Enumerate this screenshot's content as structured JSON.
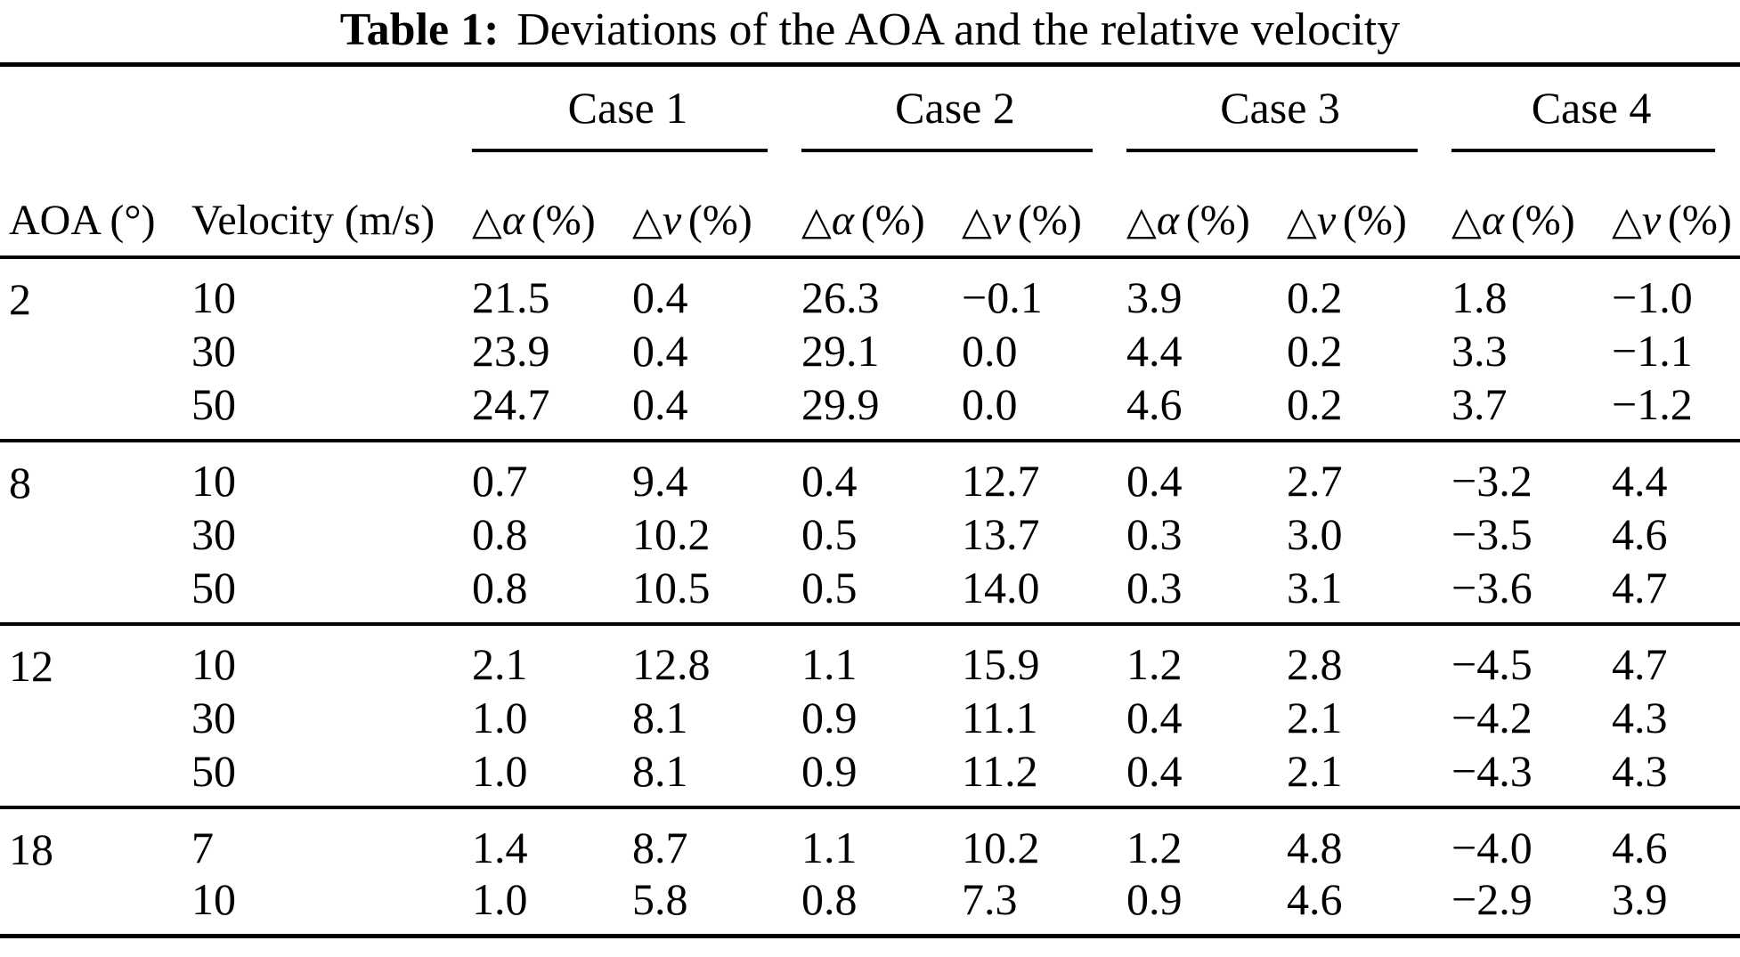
{
  "title": {
    "label": "Table 1:",
    "text": "Deviations of the AOA and the relative velocity"
  },
  "colors": {
    "text": "#000000",
    "background": "#ffffff",
    "rule": "#000000"
  },
  "table": {
    "case_headers": [
      "Case 1",
      "Case 2",
      "Case 3",
      "Case 4"
    ],
    "row_headers": {
      "aoa": "AOA (°)",
      "velocity": "Velocity (m/s)"
    },
    "metric_headers": {
      "triangle": "△",
      "alpha": "α",
      "v": "v",
      "unit": "(%)"
    },
    "groups": [
      {
        "aoa": "2",
        "rows": [
          {
            "velocity": "10",
            "values": [
              "21.5",
              "0.4",
              "26.3",
              "−0.1",
              "3.9",
              "0.2",
              "1.8",
              "−1.0"
            ]
          },
          {
            "velocity": "30",
            "values": [
              "23.9",
              "0.4",
              "29.1",
              "0.0",
              "4.4",
              "0.2",
              "3.3",
              "−1.1"
            ]
          },
          {
            "velocity": "50",
            "values": [
              "24.7",
              "0.4",
              "29.9",
              "0.0",
              "4.6",
              "0.2",
              "3.7",
              "−1.2"
            ]
          }
        ]
      },
      {
        "aoa": "8",
        "rows": [
          {
            "velocity": "10",
            "values": [
              "0.7",
              "9.4",
              "0.4",
              "12.7",
              "0.4",
              "2.7",
              "−3.2",
              "4.4"
            ]
          },
          {
            "velocity": "30",
            "values": [
              "0.8",
              "10.2",
              "0.5",
              "13.7",
              "0.3",
              "3.0",
              "−3.5",
              "4.6"
            ]
          },
          {
            "velocity": "50",
            "values": [
              "0.8",
              "10.5",
              "0.5",
              "14.0",
              "0.3",
              "3.1",
              "−3.6",
              "4.7"
            ]
          }
        ]
      },
      {
        "aoa": "12",
        "rows": [
          {
            "velocity": "10",
            "values": [
              "2.1",
              "12.8",
              "1.1",
              "15.9",
              "1.2",
              "2.8",
              "−4.5",
              "4.7"
            ]
          },
          {
            "velocity": "30",
            "values": [
              "1.0",
              "8.1",
              "0.9",
              "11.1",
              "0.4",
              "2.1",
              "−4.2",
              "4.3"
            ]
          },
          {
            "velocity": "50",
            "values": [
              "1.0",
              "8.1",
              "0.9",
              "11.2",
              "0.4",
              "2.1",
              "−4.3",
              "4.3"
            ]
          }
        ]
      },
      {
        "aoa": "18",
        "rows": [
          {
            "velocity": "7",
            "values": [
              "1.4",
              "8.7",
              "1.1",
              "10.2",
              "1.2",
              "4.8",
              "−4.0",
              "4.6"
            ]
          },
          {
            "velocity": "10",
            "values": [
              "1.0",
              "5.8",
              "0.8",
              "7.3",
              "0.9",
              "4.6",
              "−2.9",
              "3.9"
            ]
          }
        ]
      }
    ]
  }
}
